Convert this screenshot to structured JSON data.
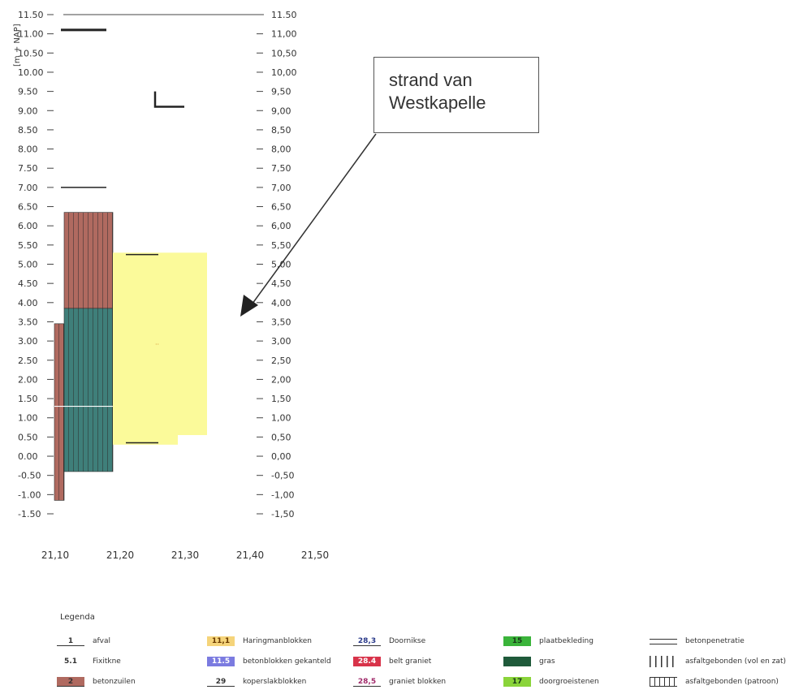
{
  "chart_data": {
    "type": "bar",
    "ylabel": "[m + NAP]",
    "yticks_left": [
      "11.50",
      "11.00",
      "10.50",
      "10.00",
      "9.50",
      "9.00",
      "8.50",
      "8.00",
      "7.50",
      "7.00",
      "6.50",
      "6.00",
      "5.50",
      "5.00",
      "4.50",
      "4.00",
      "3.50",
      "3.00",
      "2.50",
      "2.00",
      "1.50",
      "1.00",
      "0.50",
      "0.00",
      "-0.50",
      "-1.00",
      "-1.50"
    ],
    "yticks_right": [
      "11.50",
      "11,00",
      "10,50",
      "10,00",
      "9,50",
      "9,00",
      "8,50",
      "8,00",
      "7,50",
      "7,00",
      "6,50",
      "6,00",
      "5,50",
      "5,00",
      "4,50",
      "4,00",
      "3,50",
      "3,00",
      "2,50",
      "2,00",
      "1,50",
      "1,00",
      "0,50",
      "0,00",
      "-0,50",
      "-1,00",
      "-1,50"
    ],
    "ylim": [
      -1.5,
      11.5
    ],
    "xticks": [
      "21,10",
      "21,20",
      "21,30",
      "21,40",
      "21,50"
    ],
    "xlim": [
      21.1,
      21.5
    ],
    "blocks": [
      {
        "x0": 21.115,
        "x1": 21.13,
        "y0": -1.15,
        "y1": 3.45,
        "color": "#b06a60",
        "pattern": "brick"
      },
      {
        "x0": 21.13,
        "x1": 21.205,
        "y0": 3.85,
        "y1": 6.35,
        "color": "#b06a60",
        "pattern": "brick"
      },
      {
        "x0": 21.13,
        "x1": 21.205,
        "y0": -0.4,
        "y1": 3.85,
        "color": "#3f7f7a",
        "pattern": "brick"
      },
      {
        "x0": 21.205,
        "x1": 21.305,
        "y0": 0.3,
        "y1": 5.3,
        "color": "#fbfa9a",
        "pattern": "solid"
      },
      {
        "x0": 21.305,
        "x1": 21.35,
        "y0": 0.55,
        "y1": 5.3,
        "color": "#fbfa9a",
        "pattern": "solid"
      }
    ],
    "line_marks": [
      {
        "x0": 21.125,
        "x1": 21.195,
        "y": 11.1
      },
      {
        "x0": 21.125,
        "x1": 21.195,
        "y": 7.0
      },
      {
        "x0": 21.225,
        "x1": 21.275,
        "y": 5.25
      },
      {
        "x0": 21.225,
        "x1": 21.275,
        "y": 0.35
      }
    ],
    "corner_mark": {
      "x": 21.27,
      "y0": 9.5,
      "y1": 9.1,
      "x1": 21.315
    },
    "white_level": 1.3,
    "top_line": 11.5
  },
  "callout": {
    "line1": "strand van",
    "line2": "Westkapelle"
  },
  "legend": {
    "title": "Legenda",
    "items": [
      {
        "symbol": "1",
        "label": "afval",
        "style": "plain",
        "bg": "#ffffff",
        "fg": "#333333"
      },
      {
        "symbol": "5.1",
        "label": "Fixitkne",
        "style": "none",
        "bg": "#ffffff",
        "fg": "#333333"
      },
      {
        "symbol": "2",
        "label": "betonzuilen",
        "style": "plain",
        "bg": "#b06a60",
        "fg": "#333333"
      },
      {
        "symbol": "11,1",
        "label": "Haringmanblokken",
        "style": "box",
        "bg": "#f5d47a",
        "fg": "#6a3a00"
      },
      {
        "symbol": "11.5",
        "label": "betonblokken gekanteld",
        "style": "box",
        "bg": "#7b7be0",
        "fg": "#ffffff"
      },
      {
        "symbol": "29",
        "label": "koperslakblokken",
        "style": "plain",
        "bg": "#ffffff",
        "fg": "#333333"
      },
      {
        "symbol": "28,3",
        "label": "Doornikse",
        "style": "plain",
        "bg": "#ffffff",
        "fg": "#2a3a8a"
      },
      {
        "symbol": "28.4",
        "label": "belt graniet",
        "style": "box",
        "bg": "#d8334a",
        "fg": "#ffffff"
      },
      {
        "symbol": "28,5",
        "label": "graniet blokken",
        "style": "plain",
        "bg": "#ffffff",
        "fg": "#a02a6a"
      },
      {
        "symbol": "15",
        "label": "plaatbekleding",
        "style": "box",
        "bg": "#3ab43a",
        "fg": "#1a3a1a"
      },
      {
        "symbol": "",
        "label": "gras",
        "style": "box",
        "bg": "#1f5a3a",
        "fg": "#ffffff"
      },
      {
        "symbol": "17",
        "label": "doorgroeistenen",
        "style": "box",
        "bg": "#8ad43a",
        "fg": "#1a3a1a"
      },
      {
        "symbol": "",
        "label": "betonpenetratie",
        "style": "dbl",
        "bg": "#ffffff",
        "fg": "#333333"
      },
      {
        "symbol": "",
        "label": "asfaltgebonden (vol en zat)",
        "style": "hatch3",
        "bg": "#ffffff",
        "fg": "#333333"
      },
      {
        "symbol": "",
        "label": "asfaltgebonden (patroon)",
        "style": "grid",
        "bg": "#ffffff",
        "fg": "#333333"
      }
    ]
  }
}
